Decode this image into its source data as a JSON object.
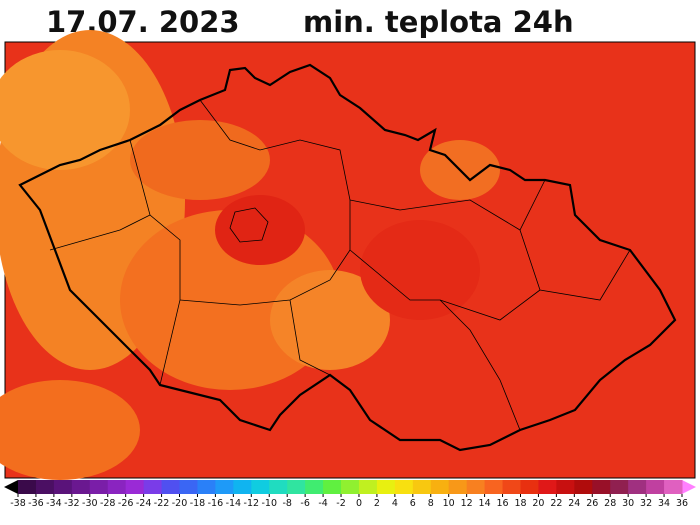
{
  "header": {
    "date": "17.07.  2023",
    "title": "min. teplota 24h"
  },
  "legend": {
    "labels": [
      -38,
      -36,
      -34,
      -32,
      -30,
      -28,
      -26,
      -24,
      -22,
      -20,
      -18,
      -16,
      -14,
      -12,
      -10,
      -8,
      -6,
      -4,
      -2,
      0,
      2,
      4,
      6,
      8,
      10,
      12,
      14,
      16,
      18,
      20,
      22,
      24,
      26,
      28,
      30,
      32,
      34,
      36
    ],
    "colors": [
      "#3a0a4a",
      "#4b0f63",
      "#5a137a",
      "#6a1890",
      "#7a1ea8",
      "#8a24c0",
      "#9a2ad6",
      "#7a3ce8",
      "#5050f0",
      "#3a66f4",
      "#2a80f8",
      "#1e9af8",
      "#10b4f0",
      "#10cce0",
      "#20dcc0",
      "#30e4a0",
      "#40ec70",
      "#60f040",
      "#90f030",
      "#c0f020",
      "#e8f010",
      "#f8e010",
      "#f8c810",
      "#f8b010",
      "#f89818",
      "#f88020",
      "#f86420",
      "#f04818",
      "#e83010",
      "#e01818",
      "#c81010",
      "#b00c0c",
      "#981028",
      "#902050",
      "#a03080",
      "#c040a0",
      "#e060c0"
    ],
    "low_color": "#000000",
    "high_color": "#ff80ff"
  }
}
